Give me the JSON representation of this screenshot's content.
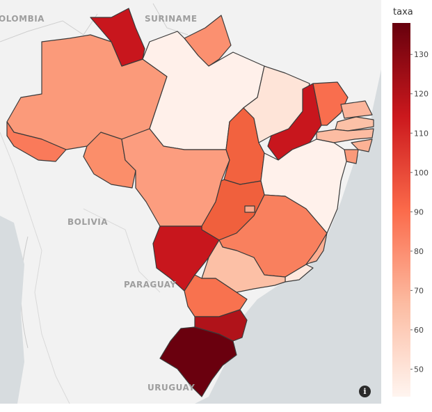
{
  "map": {
    "country_labels": [
      "OLOMBIA",
      "SURINAME",
      "BOLIVIA",
      "PARAGUAY",
      "URUGUAY"
    ],
    "colors": {
      "ocean": "#d7dcdf",
      "land": "#f2f2f2",
      "border": "#3a3a3a"
    }
  },
  "colorbar": {
    "title": "taxa",
    "ticks": [
      "130",
      "120",
      "110",
      "100",
      "90",
      "80",
      "70",
      "60",
      "50"
    ],
    "range": [
      43,
      138
    ],
    "colors": [
      "#fff5f0",
      "#fcbba1",
      "#fb6a4a",
      "#cb181d",
      "#67000d"
    ]
  },
  "info_icon": {
    "glyph": "i",
    "name": "info-icon"
  }
}
